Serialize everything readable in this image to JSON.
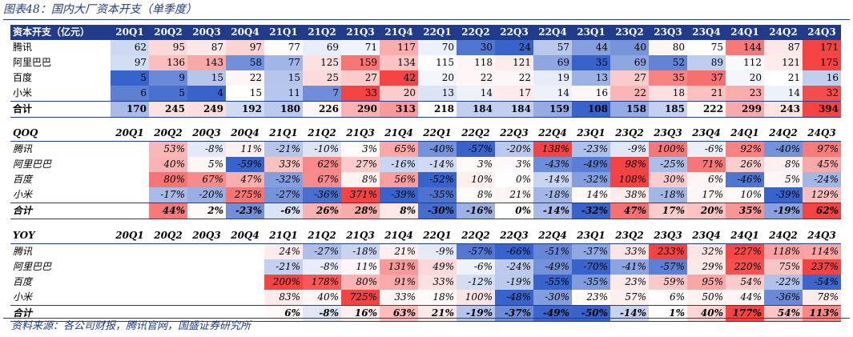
{
  "title": "图表48：国内大厂资本开支（单季度）",
  "source": "资料来源：各公司财报，腾讯官网，国盛证券研究所",
  "colors": {
    "header_bg": "#1f3b8a",
    "high": "#f23a3a",
    "low": "#2e5bc7"
  },
  "quarters": [
    "20Q1",
    "20Q2",
    "20Q3",
    "20Q4",
    "21Q1",
    "21Q2",
    "21Q3",
    "21Q4",
    "22Q1",
    "22Q2",
    "22Q3",
    "22Q4",
    "23Q1",
    "23Q2",
    "23Q3",
    "23Q4",
    "24Q1",
    "24Q2",
    "24Q3"
  ],
  "sections": [
    {
      "id": "sec1",
      "header": "资本开支（亿元）",
      "format": "num",
      "rows": [
        {
          "label": "腾讯",
          "values": [
            62,
            95,
            87,
            97,
            77,
            69,
            71,
            117,
            70,
            30,
            24,
            57,
            44,
            40,
            80,
            75,
            144,
            87,
            171
          ]
        },
        {
          "label": "阿里巴巴",
          "values": [
            97,
            136,
            143,
            58,
            77,
            125,
            159,
            134,
            115,
            118,
            121,
            69,
            35,
            69,
            52,
            89,
            112,
            121,
            175
          ]
        },
        {
          "label": "百度",
          "values": [
            5,
            9,
            15,
            22,
            15,
            25,
            27,
            42,
            20,
            22,
            22,
            19,
            13,
            27,
            35,
            37,
            20,
            21,
            16
          ]
        },
        {
          "label": "小米",
          "values": [
            6,
            5,
            4,
            15,
            11,
            7,
            33,
            20,
            13,
            14,
            17,
            14,
            16,
            22,
            18,
            21,
            23,
            14,
            32
          ]
        }
      ],
      "total": {
        "label": "合计",
        "values": [
          170,
          245,
          249,
          192,
          180,
          226,
          290,
          313,
          218,
          184,
          184,
          159,
          108,
          158,
          185,
          222,
          299,
          243,
          394
        ]
      }
    },
    {
      "id": "sec2",
      "header": "QOQ",
      "format": "pct",
      "rows": [
        {
          "label": "腾讯",
          "values": [
            null,
            53,
            -8,
            11,
            -21,
            -10,
            3,
            65,
            -40,
            -57,
            -20,
            138,
            -23,
            -9,
            100,
            -6,
            92,
            -40,
            97
          ]
        },
        {
          "label": "阿里巴巴",
          "values": [
            null,
            40,
            5,
            -59,
            33,
            62,
            27,
            -16,
            -14,
            3,
            3,
            -43,
            -49,
            98,
            -25,
            71,
            26,
            8,
            45
          ]
        },
        {
          "label": "百度",
          "values": [
            null,
            80,
            67,
            47,
            -32,
            67,
            8,
            56,
            -52,
            10,
            0,
            -14,
            -32,
            108,
            30,
            6,
            -46,
            5,
            -24
          ]
        },
        {
          "label": "小米",
          "values": [
            null,
            -17,
            -20,
            275,
            -27,
            -36,
            371,
            -39,
            -35,
            8,
            21,
            -18,
            14,
            38,
            -18,
            17,
            10,
            -39,
            129
          ]
        }
      ],
      "total": {
        "label": "合计",
        "values": [
          null,
          44,
          2,
          -23,
          -6,
          26,
          28,
          8,
          -30,
          -16,
          0,
          -14,
          -32,
          47,
          17,
          20,
          35,
          -19,
          62
        ]
      }
    },
    {
      "id": "sec3",
      "header": "YOY",
      "format": "pct",
      "rows": [
        {
          "label": "腾讯",
          "values": [
            null,
            null,
            null,
            null,
            24,
            -27,
            -18,
            21,
            -9,
            -57,
            -66,
            -51,
            -37,
            33,
            233,
            32,
            227,
            118,
            114
          ]
        },
        {
          "label": "阿里巴巴",
          "values": [
            null,
            null,
            null,
            null,
            -21,
            -8,
            11,
            131,
            49,
            -6,
            -24,
            -49,
            -70,
            -41,
            -57,
            29,
            220,
            75,
            237
          ]
        },
        {
          "label": "百度",
          "values": [
            null,
            null,
            null,
            null,
            200,
            178,
            80,
            91,
            33,
            -12,
            -19,
            -55,
            -35,
            23,
            59,
            95,
            54,
            -22,
            -54
          ]
        },
        {
          "label": "小米",
          "values": [
            null,
            null,
            null,
            null,
            83,
            40,
            725,
            33,
            18,
            100,
            -48,
            -30,
            23,
            57,
            6,
            50,
            44,
            -36,
            78
          ]
        }
      ],
      "total": {
        "label": "合计",
        "values": [
          null,
          null,
          null,
          null,
          6,
          -8,
          16,
          63,
          21,
          -19,
          -37,
          -49,
          -50,
          -14,
          1,
          40,
          177,
          54,
          113
        ]
      }
    }
  ]
}
